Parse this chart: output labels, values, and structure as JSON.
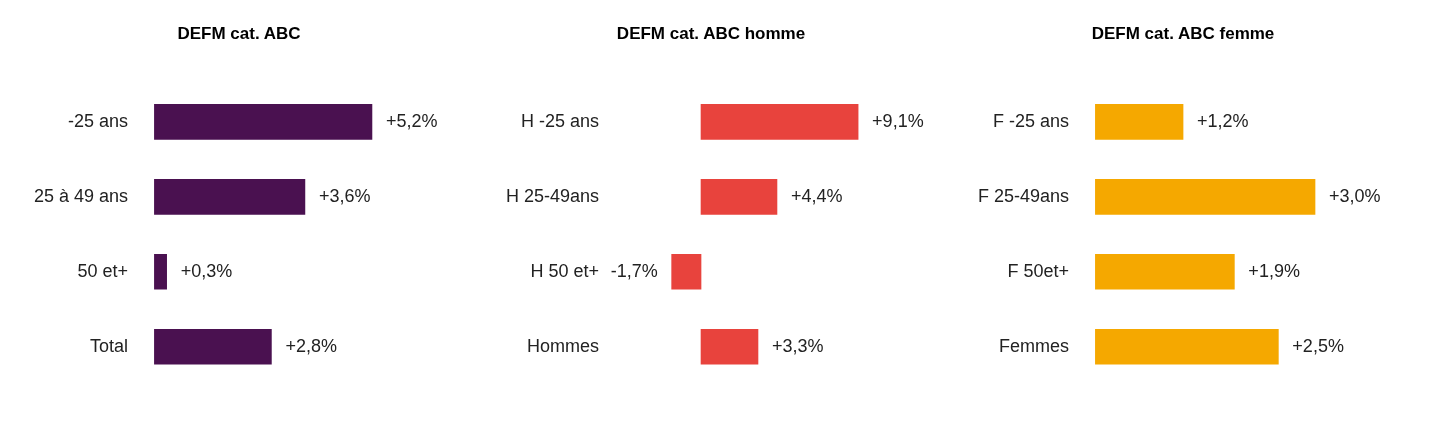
{
  "chart_data": [
    {
      "type": "bar",
      "orientation": "horizontal",
      "title": "DEFM cat. ABC",
      "categories": [
        "-25 ans",
        "25 à 49 ans",
        "50 et+",
        "Total"
      ],
      "values": [
        5.2,
        3.6,
        0.3,
        2.8
      ],
      "color": "#4a1150",
      "value_labels": [
        "+5,2%",
        "+3,6%",
        "+0,3%",
        "+2,8%"
      ]
    },
    {
      "type": "bar",
      "orientation": "horizontal",
      "title": "DEFM cat. ABC homme",
      "categories": [
        "H -25 ans",
        "H 25-49ans",
        "H 50 et+",
        "Hommes"
      ],
      "values": [
        9.1,
        4.4,
        -1.7,
        3.3
      ],
      "color": "#e8433d",
      "value_labels": [
        "+9,1%",
        "+4,4%",
        "-1,7%",
        "+3,3%"
      ]
    },
    {
      "type": "bar",
      "orientation": "horizontal",
      "title": "DEFM cat. ABC femme",
      "categories": [
        "F -25 ans",
        "F 25-49ans",
        "F 50et+",
        "Femmes"
      ],
      "values": [
        1.2,
        3.0,
        1.9,
        2.5
      ],
      "color": "#f5a800",
      "value_labels": [
        "+1,2%",
        "+3,0%",
        "+1,9%",
        "+2,5%"
      ]
    }
  ]
}
